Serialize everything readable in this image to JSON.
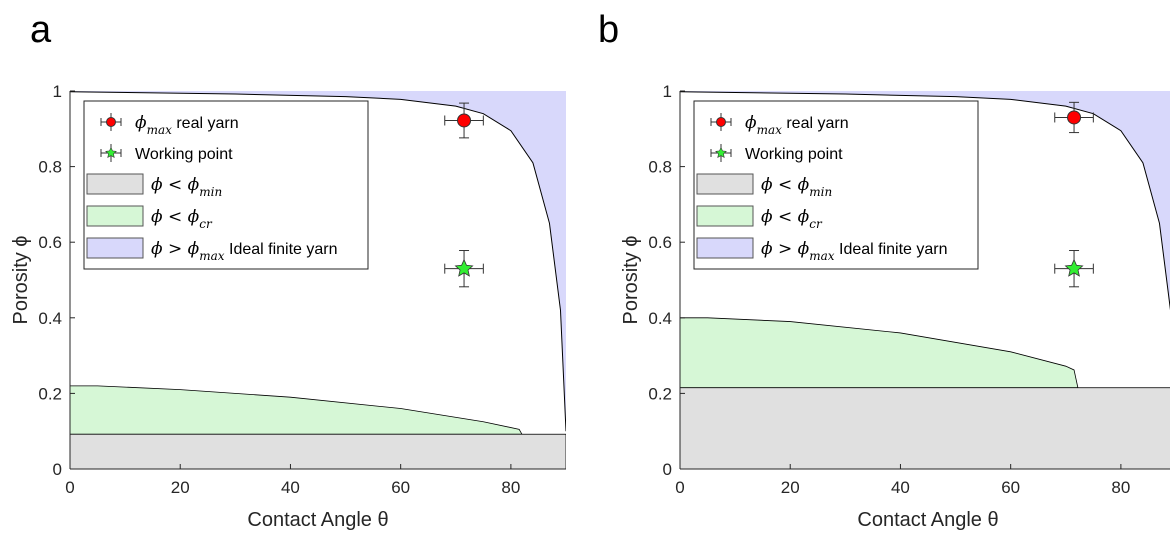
{
  "panels_meta": {
    "letters": [
      "a",
      "b"
    ]
  },
  "chart_data": [
    {
      "type": "area",
      "panel": "a",
      "xlabel": "Contact Angle θ",
      "ylabel": "Porosity ϕ",
      "xlim": [
        0,
        90
      ],
      "ylim": [
        0,
        1
      ],
      "xticks": [
        0,
        20,
        40,
        60,
        80
      ],
      "yticks": [
        0,
        0.2,
        0.4,
        0.6,
        0.8,
        1
      ],
      "legend_position": "top-left",
      "phi_min": 0.092,
      "phi_cr": {
        "x": [
          0,
          5,
          20,
          40,
          60,
          75,
          81.5,
          82
        ],
        "y": [
          0.22,
          0.22,
          0.21,
          0.19,
          0.16,
          0.125,
          0.105,
          0.092
        ]
      },
      "phi_max_curve": {
        "x": [
          0,
          30,
          50,
          60,
          70,
          75,
          80,
          84,
          87,
          89,
          90
        ],
        "y": [
          0.998,
          0.992,
          0.985,
          0.978,
          0.96,
          0.94,
          0.895,
          0.81,
          0.65,
          0.42,
          0.1
        ]
      },
      "points": [
        {
          "name": "ϕmax real yarn",
          "x": 71.5,
          "y": 0.922,
          "xerr": 3.5,
          "yerr": 0.046,
          "marker": "circle",
          "color": "#ff0000"
        },
        {
          "name": "Working point",
          "x": 71.5,
          "y": 0.53,
          "xerr": 3.5,
          "yerr": 0.048,
          "marker": "star",
          "color": "#33ee33"
        }
      ],
      "legend": [
        {
          "kind": "point",
          "sym": "ϕ",
          "sub": "max",
          "text": "real yarn",
          "color": "#ff0000",
          "marker": "circle"
        },
        {
          "kind": "point",
          "sym": "",
          "sub": "",
          "text": "Working point",
          "color": "#33ee33",
          "marker": "star"
        },
        {
          "kind": "patch",
          "sym": "ϕ < ϕ",
          "sub": "min",
          "text": "",
          "color": "#e0e0e0"
        },
        {
          "kind": "patch",
          "sym": "ϕ < ϕ",
          "sub": "cr",
          "text": "",
          "color": "#d6f7d6"
        },
        {
          "kind": "patch",
          "sym": "ϕ >  ϕ",
          "sub": "max",
          "text": "Ideal finite yarn",
          "color": "#d8d8fb"
        }
      ]
    },
    {
      "type": "area",
      "panel": "b",
      "xlabel": "Contact Angle θ",
      "ylabel": "Porosity ϕ",
      "xlim": [
        0,
        90
      ],
      "ylim": [
        0,
        1
      ],
      "xticks": [
        0,
        20,
        40,
        60,
        80
      ],
      "yticks": [
        0,
        0.2,
        0.4,
        0.6,
        0.8,
        1
      ],
      "legend_position": "top-left",
      "phi_min": 0.215,
      "phi_cr": {
        "x": [
          0,
          5,
          20,
          40,
          60,
          70,
          71.5,
          72.2
        ],
        "y": [
          0.4,
          0.4,
          0.39,
          0.36,
          0.31,
          0.272,
          0.262,
          0.215
        ]
      },
      "phi_max_curve": {
        "x": [
          0,
          30,
          50,
          60,
          70,
          75,
          80,
          84,
          87,
          89,
          90
        ],
        "y": [
          0.998,
          0.992,
          0.985,
          0.978,
          0.96,
          0.94,
          0.895,
          0.81,
          0.65,
          0.42,
          0.1
        ]
      },
      "points": [
        {
          "name": "ϕmax real yarn",
          "x": 71.5,
          "y": 0.93,
          "xerr": 3.5,
          "yerr": 0.04,
          "marker": "circle",
          "color": "#ff0000"
        },
        {
          "name": "Working point",
          "x": 71.5,
          "y": 0.53,
          "xerr": 3.5,
          "yerr": 0.048,
          "marker": "star",
          "color": "#33ee33"
        }
      ],
      "legend": [
        {
          "kind": "point",
          "sym": "ϕ",
          "sub": "max",
          "text": "real yarn",
          "color": "#ff0000",
          "marker": "circle"
        },
        {
          "kind": "point",
          "sym": "",
          "sub": "",
          "text": "Working point",
          "color": "#33ee33",
          "marker": "star"
        },
        {
          "kind": "patch",
          "sym": "ϕ < ϕ",
          "sub": "min",
          "text": "",
          "color": "#e0e0e0"
        },
        {
          "kind": "patch",
          "sym": "ϕ < ϕ",
          "sub": "cr",
          "text": "",
          "color": "#d6f7d6"
        },
        {
          "kind": "patch",
          "sym": "ϕ >  ϕ",
          "sub": "max",
          "text": "Ideal finite yarn",
          "color": "#d8d8fb"
        }
      ]
    }
  ],
  "colors": {
    "phi_max_fill": "#d8d8fb",
    "phi_cr_fill": "#d6f7d6",
    "phi_min_fill": "#e0e0e0",
    "axis": "#262626"
  }
}
